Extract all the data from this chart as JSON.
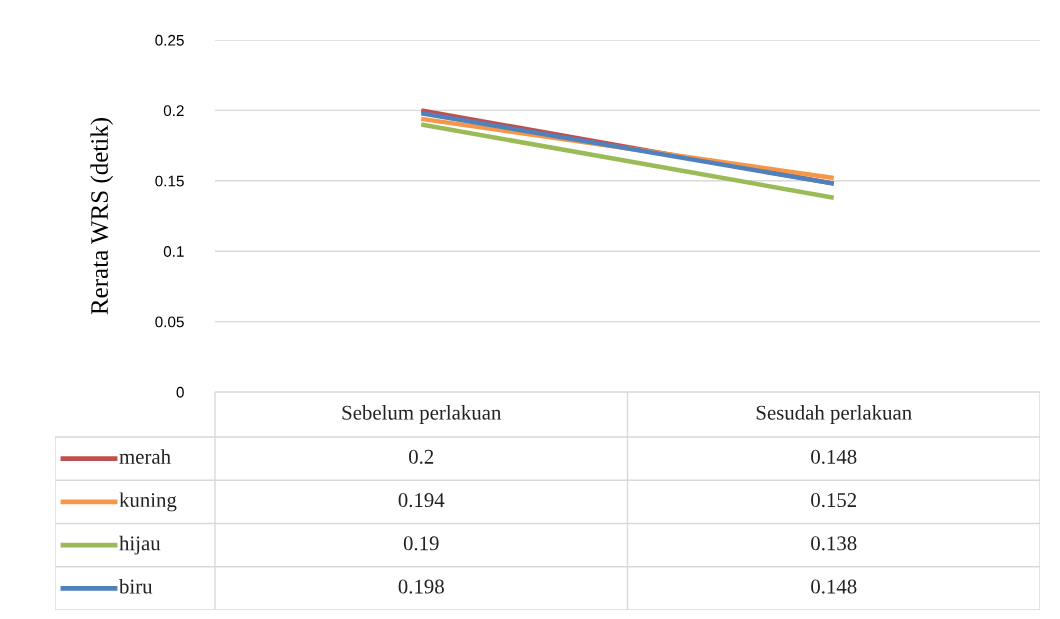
{
  "chart_data": {
    "type": "line",
    "ylabel": "Rerata WRS (detik)",
    "categories": [
      "Sebelum perlakuan",
      "Sesudah perlakuan"
    ],
    "series": [
      {
        "name": "merah",
        "color": "#c0504d",
        "values": [
          0.2,
          0.148
        ]
      },
      {
        "name": "kuning",
        "color": "#f79646",
        "values": [
          0.194,
          0.152
        ]
      },
      {
        "name": "hijau",
        "color": "#9bbb59",
        "values": [
          0.19,
          0.138
        ]
      },
      {
        "name": "biru",
        "color": "#4f81bd",
        "values": [
          0.198,
          0.148
        ]
      }
    ],
    "ylim": [
      0,
      0.25
    ],
    "yticks": [
      0,
      0.05,
      0.1,
      0.15,
      0.2,
      0.25
    ],
    "grid": "y",
    "legend": "bottom",
    "data_labels": true,
    "marker": "none",
    "line_style": "solid"
  }
}
